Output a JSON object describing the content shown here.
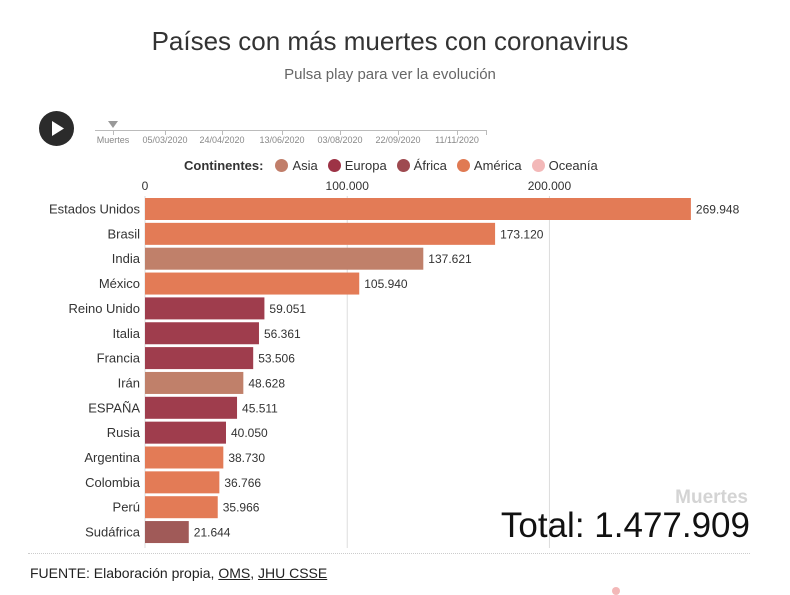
{
  "header": {
    "title": "Países con más muertes con coronavirus",
    "subtitle": "Pulsa play para ver la evolución"
  },
  "timeline": {
    "labels": [
      "Muertes",
      "05/03/2020",
      "24/04/2020",
      "13/06/2020",
      "03/08/2020",
      "22/09/2020",
      "11/11/2020"
    ]
  },
  "legend": {
    "title": "Continentes:",
    "items": [
      {
        "label": "Asia",
        "color": "#c17e6a"
      },
      {
        "label": "Europa",
        "color": "#9d3346"
      },
      {
        "label": "África",
        "color": "#9e4a50"
      },
      {
        "label": "América",
        "color": "#e07a53"
      },
      {
        "label": "Oceanía",
        "color": "#f3b8b8"
      }
    ]
  },
  "colors": {
    "Asia": "#c0806a",
    "Europa": "#9f3d4d",
    "África": "#a05a58",
    "América": "#e37b56",
    "Oceanía": "#f3b8b8"
  },
  "chart_data": {
    "type": "bar",
    "orientation": "horizontal",
    "xlim": [
      0,
      270000
    ],
    "x_ticks": [
      0,
      100000,
      200000
    ],
    "x_tick_labels": [
      "0",
      "100.000",
      "200.000"
    ],
    "categories": [
      "Estados Unidos",
      "Brasil",
      "India",
      "México",
      "Reino Unido",
      "Italia",
      "Francia",
      "Irán",
      "ESPAÑA",
      "Rusia",
      "Argentina",
      "Colombia",
      "Perú",
      "Sudáfrica"
    ],
    "values": [
      269948,
      173120,
      137621,
      105940,
      59051,
      56361,
      53506,
      48628,
      45511,
      40050,
      38730,
      36766,
      35966,
      21644
    ],
    "value_labels": [
      "269.948",
      "173.120",
      "137.621",
      "105.940",
      "59.051",
      "56.361",
      "53.506",
      "48.628",
      "45.511",
      "40.050",
      "38.730",
      "36.766",
      "35.966",
      "21.644"
    ],
    "continents": [
      "América",
      "América",
      "Asia",
      "América",
      "Europa",
      "Europa",
      "Europa",
      "Asia",
      "Europa",
      "Europa",
      "América",
      "América",
      "América",
      "África"
    ],
    "grid": true
  },
  "total": {
    "metric_label": "Muertes",
    "value_text": "Total: 1.477.909"
  },
  "footer": {
    "source_prefix": "FUENTE: Elaboración propia,",
    "link1": "OMS",
    "separator": ",",
    "link2": "JHU CSSE"
  }
}
